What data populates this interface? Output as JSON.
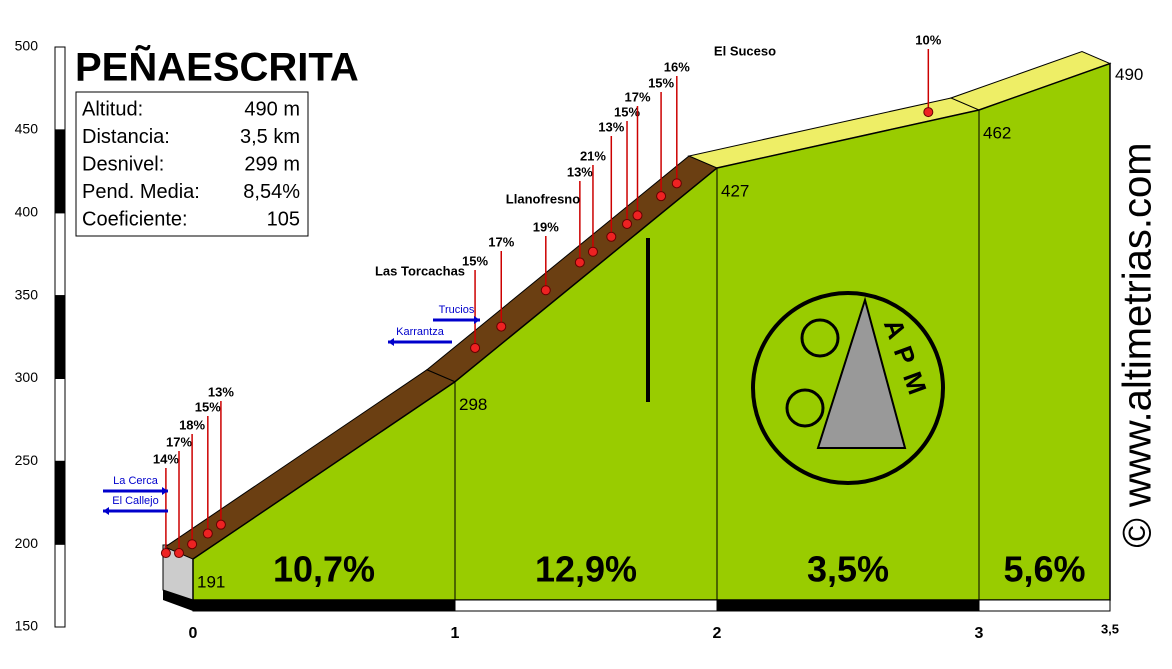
{
  "chart_data": {
    "type": "area",
    "title": "PEÑAESCRITA",
    "stats": [
      {
        "label": "Altitud:",
        "value": "490 m"
      },
      {
        "label": "Distancia:",
        "value": "3,5 km"
      },
      {
        "label": "Desnivel:",
        "value": "299 m"
      },
      {
        "label": "Pend. Media:",
        "value": "8,54%"
      },
      {
        "label": "Coeficiente:",
        "value": "105"
      }
    ],
    "x": [
      0,
      1,
      2,
      3,
      3.5
    ],
    "values": [
      191,
      298,
      427,
      462,
      490
    ],
    "color": "#99cc00",
    "xlim": [
      0,
      3.5
    ],
    "xticks": [
      0,
      1,
      2,
      3,
      {
        "value": 3.5,
        "label": "3,5"
      }
    ],
    "ylim": [
      150,
      500
    ],
    "yticks": [
      150,
      200,
      250,
      300,
      350,
      400,
      450,
      500
    ],
    "segment_labels": [
      "10,7%",
      "12,9%",
      "3,5%",
      "5,6%"
    ],
    "ramps": {
      "x": [
        -0.05,
        0.0,
        0.05,
        0.11,
        0.16,
        1.13,
        1.23,
        1.4,
        1.53,
        1.58,
        1.65,
        1.71,
        1.75,
        1.84,
        1.9,
        2.86
      ],
      "labels": [
        "14%",
        "17%",
        "18%",
        "15%",
        "13%",
        "15%",
        "17%",
        "19%",
        "13%",
        "21%",
        "13%",
        "15%",
        "17%",
        "15%",
        "16%",
        "10%"
      ]
    },
    "places": [
      "Las Torcachas",
      "Llanofresno",
      "El Suceso"
    ],
    "roads": [
      "La Cerca",
      "El Callejo",
      "Trucios",
      "Karrantza"
    ],
    "logo": "APM",
    "watermark": "© www.altimetrias.com"
  }
}
